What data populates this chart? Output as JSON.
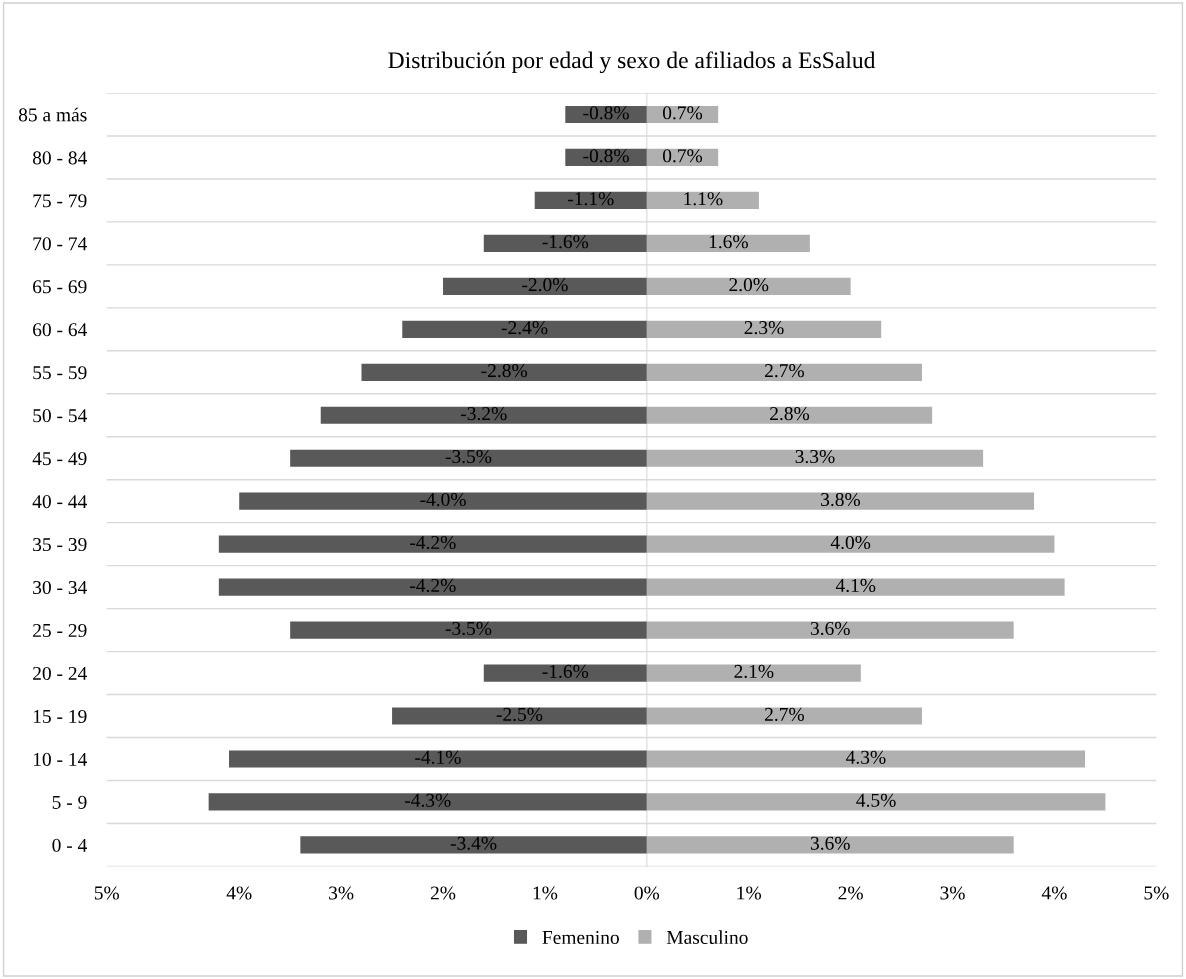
{
  "chart_data": {
    "type": "bar",
    "orientation": "horizontal",
    "title": "Distribución por edad y sexo de afiliados a EsSalud",
    "categories": [
      "85 a más",
      "80 - 84",
      "75 - 79",
      "70 - 74",
      "65 - 69",
      "60 - 64",
      "55 - 59",
      "50 - 54",
      "45 - 49",
      "40 - 44",
      "35 - 39",
      "30 - 34",
      "25 - 29",
      "20 - 24",
      "15 - 19",
      "10 - 14",
      "5 - 9",
      "0 - 4"
    ],
    "series": [
      {
        "name": "Femenino",
        "color": "#595959",
        "values": [
          -0.8,
          -0.8,
          -1.1,
          -1.6,
          -2.0,
          -2.4,
          -2.8,
          -3.2,
          -3.5,
          -4.0,
          -4.2,
          -4.2,
          -3.5,
          -1.6,
          -2.5,
          -4.1,
          -4.3,
          -3.4
        ],
        "value_labels": [
          "-0.8%",
          "-0.8%",
          "-1.1%",
          "-1.6%",
          "-2.0%",
          "-2.4%",
          "-2.8%",
          "-3.2%",
          "-3.5%",
          "-4.0%",
          "-4.2%",
          "-4.2%",
          "-3.5%",
          "-1.6%",
          "-2.5%",
          "-4.1%",
          "-4.3%",
          "-3.4%"
        ]
      },
      {
        "name": "Masculino",
        "color": "#b0b0b0",
        "values": [
          0.7,
          0.7,
          1.1,
          1.6,
          2.0,
          2.3,
          2.7,
          2.8,
          3.3,
          3.8,
          4.0,
          4.1,
          3.6,
          2.1,
          2.7,
          4.3,
          4.5,
          3.6
        ],
        "value_labels": [
          "0.7%",
          "0.7%",
          "1.1%",
          "1.6%",
          "2.0%",
          "2.3%",
          "2.7%",
          "2.8%",
          "3.3%",
          "3.8%",
          "4.0%",
          "4.1%",
          "3.6%",
          "2.1%",
          "2.7%",
          "4.3%",
          "4.5%",
          "3.6%"
        ]
      }
    ],
    "xlim": [
      -5.3,
      5.0
    ],
    "xticks": [
      {
        "value": -5.3,
        "label": "5%"
      },
      {
        "value": -4,
        "label": "4%"
      },
      {
        "value": -3,
        "label": "3%"
      },
      {
        "value": -2,
        "label": "2%"
      },
      {
        "value": -1,
        "label": "1%"
      },
      {
        "value": 0,
        "label": "0%"
      },
      {
        "value": 1,
        "label": "1%"
      },
      {
        "value": 2,
        "label": "2%"
      },
      {
        "value": 3,
        "label": "3%"
      },
      {
        "value": 4,
        "label": "4%"
      },
      {
        "value": 5,
        "label": "5%"
      }
    ],
    "grid": "y",
    "legend": "bottom",
    "stacked": true
  }
}
